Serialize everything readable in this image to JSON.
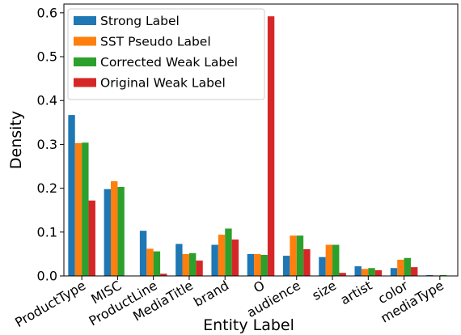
{
  "chart_data": {
    "type": "bar",
    "title": "",
    "xlabel": "Entity Label",
    "ylabel": "Density",
    "ylim": [
      0,
      0.62
    ],
    "yticks": [
      "0.0",
      "0.1",
      "0.2",
      "0.3",
      "0.4",
      "0.5",
      "0.6"
    ],
    "grid": false,
    "legend_position": "top-left",
    "categories": [
      "ProductType",
      "MISC",
      "ProductLine",
      "MediaTitle",
      "brand",
      "O",
      "audience",
      "size",
      "artist",
      "color",
      "mediaType"
    ],
    "series": [
      {
        "name": "Strong Label",
        "color": "#1f77b4",
        "values": [
          0.367,
          0.198,
          0.103,
          0.073,
          0.071,
          0.05,
          0.046,
          0.043,
          0.022,
          0.018,
          0.002
        ]
      },
      {
        "name": "SST Pseudo Label",
        "color": "#ff7f0e",
        "values": [
          0.303,
          0.216,
          0.062,
          0.05,
          0.094,
          0.05,
          0.092,
          0.071,
          0.016,
          0.037,
          0.001
        ]
      },
      {
        "name": "Corrected Weak Label",
        "color": "#2ca02c",
        "values": [
          0.304,
          0.203,
          0.056,
          0.052,
          0.108,
          0.048,
          0.092,
          0.071,
          0.018,
          0.041,
          0.002
        ]
      },
      {
        "name": "Original Weak Label",
        "color": "#d62728",
        "values": [
          0.172,
          0.0,
          0.005,
          0.035,
          0.083,
          0.592,
          0.061,
          0.007,
          0.013,
          0.02,
          0.0
        ]
      }
    ]
  }
}
